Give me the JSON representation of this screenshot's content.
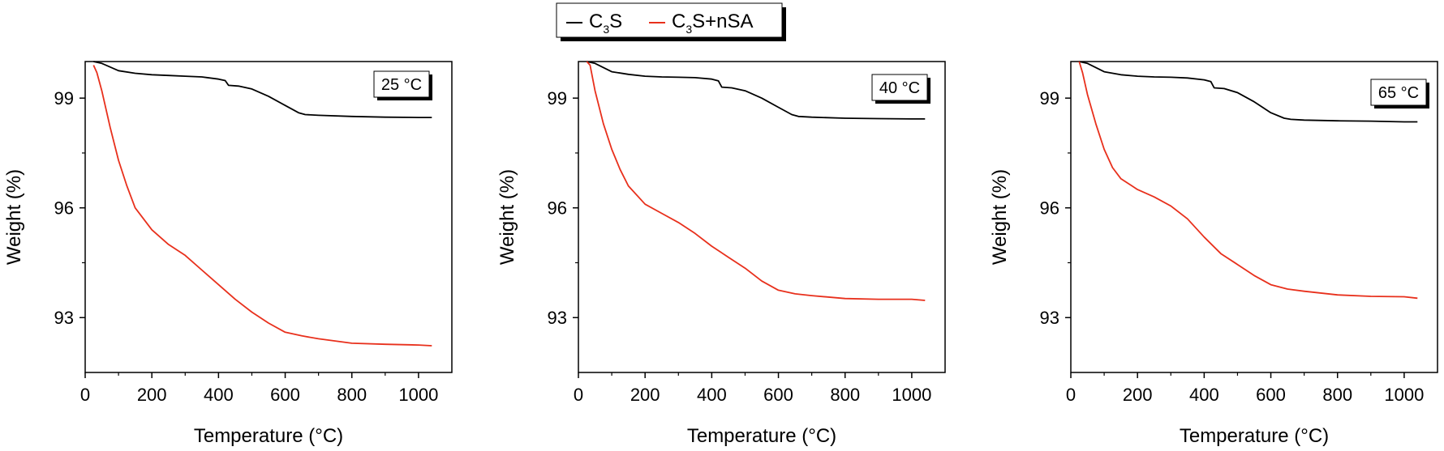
{
  "legend": {
    "entries": [
      {
        "prefix": "C",
        "sub": "3",
        "suffix": "S",
        "color": "#000000"
      },
      {
        "prefix": "C",
        "sub": "3",
        "suffix": "S+nSA",
        "color": "#e8301c"
      }
    ]
  },
  "chart_data": [
    {
      "type": "line",
      "annotation": "25 °C",
      "xlabel": "Temperature (°C)",
      "ylabel": "Weight (%)",
      "xlim": [
        0,
        1100
      ],
      "ylim": [
        91.5,
        100
      ],
      "xticks": [
        0,
        200,
        400,
        600,
        800,
        1000
      ],
      "yticks": [
        93,
        96,
        99
      ],
      "grid": false,
      "series": [
        {
          "name": "C3S",
          "color": "#000000",
          "x": [
            25,
            50,
            100,
            150,
            200,
            250,
            300,
            350,
            400,
            420,
            430,
            460,
            500,
            550,
            600,
            640,
            660,
            700,
            800,
            900,
            1000,
            1040
          ],
          "y": [
            100,
            99.95,
            99.75,
            99.68,
            99.64,
            99.62,
            99.6,
            99.58,
            99.52,
            99.48,
            99.35,
            99.33,
            99.25,
            99.05,
            98.8,
            98.6,
            98.55,
            98.53,
            98.5,
            98.48,
            98.47,
            98.47
          ]
        },
        {
          "name": "C3S+nSA",
          "color": "#e8301c",
          "x": [
            25,
            35,
            50,
            75,
            100,
            125,
            150,
            200,
            250,
            300,
            350,
            400,
            450,
            500,
            550,
            600,
            650,
            700,
            800,
            900,
            1000,
            1040
          ],
          "y": [
            99.9,
            99.7,
            99.2,
            98.2,
            97.3,
            96.6,
            96.0,
            95.4,
            95.0,
            94.7,
            94.3,
            93.9,
            93.5,
            93.15,
            92.85,
            92.6,
            92.5,
            92.42,
            92.3,
            92.27,
            92.25,
            92.23
          ]
        }
      ]
    },
    {
      "type": "line",
      "annotation": "40 °C",
      "xlabel": "Temperature (°C)",
      "ylabel": "Weight (%)",
      "xlim": [
        0,
        1100
      ],
      "ylim": [
        91.5,
        100
      ],
      "xticks": [
        0,
        200,
        400,
        600,
        800,
        1000
      ],
      "yticks": [
        93,
        96,
        99
      ],
      "grid": false,
      "series": [
        {
          "name": "C3S",
          "color": "#000000",
          "x": [
            25,
            50,
            100,
            150,
            200,
            250,
            300,
            350,
            400,
            420,
            430,
            460,
            500,
            550,
            600,
            640,
            660,
            700,
            800,
            900,
            1000,
            1040
          ],
          "y": [
            100,
            99.95,
            99.72,
            99.65,
            99.6,
            99.58,
            99.57,
            99.56,
            99.52,
            99.47,
            99.3,
            99.28,
            99.2,
            99.0,
            98.75,
            98.55,
            98.5,
            98.48,
            98.45,
            98.44,
            98.43,
            98.43
          ]
        },
        {
          "name": "C3S+nSA",
          "color": "#e8301c",
          "x": [
            25,
            35,
            50,
            75,
            100,
            125,
            150,
            200,
            250,
            300,
            350,
            400,
            450,
            500,
            550,
            600,
            650,
            700,
            800,
            900,
            1000,
            1040
          ],
          "y": [
            100,
            99.9,
            99.2,
            98.3,
            97.6,
            97.05,
            96.6,
            96.1,
            95.85,
            95.6,
            95.3,
            94.95,
            94.65,
            94.35,
            94.0,
            93.75,
            93.65,
            93.6,
            93.52,
            93.5,
            93.5,
            93.47
          ]
        }
      ]
    },
    {
      "type": "line",
      "annotation": "65 °C",
      "xlabel": "Temperature (°C)",
      "ylabel": "Weight (%)",
      "xlim": [
        0,
        1100
      ],
      "ylim": [
        91.5,
        100
      ],
      "xticks": [
        0,
        200,
        400,
        600,
        800,
        1000
      ],
      "yticks": [
        93,
        96,
        99
      ],
      "grid": false,
      "series": [
        {
          "name": "C3S",
          "color": "#000000",
          "x": [
            25,
            50,
            100,
            150,
            200,
            250,
            300,
            350,
            400,
            420,
            430,
            460,
            500,
            550,
            600,
            640,
            660,
            700,
            800,
            900,
            1000,
            1040
          ],
          "y": [
            100,
            99.95,
            99.72,
            99.64,
            99.6,
            99.58,
            99.57,
            99.55,
            99.5,
            99.45,
            99.28,
            99.26,
            99.15,
            98.9,
            98.6,
            98.45,
            98.42,
            98.4,
            98.38,
            98.37,
            98.35,
            98.35
          ]
        },
        {
          "name": "C3S+nSA",
          "color": "#e8301c",
          "x": [
            25,
            35,
            50,
            75,
            100,
            125,
            150,
            200,
            250,
            300,
            350,
            400,
            450,
            500,
            550,
            600,
            650,
            700,
            800,
            900,
            1000,
            1040
          ],
          "y": [
            100,
            99.7,
            99.1,
            98.3,
            97.6,
            97.1,
            96.8,
            96.5,
            96.3,
            96.05,
            95.7,
            95.2,
            94.75,
            94.45,
            94.15,
            93.9,
            93.78,
            93.72,
            93.62,
            93.58,
            93.57,
            93.53
          ]
        }
      ]
    }
  ]
}
